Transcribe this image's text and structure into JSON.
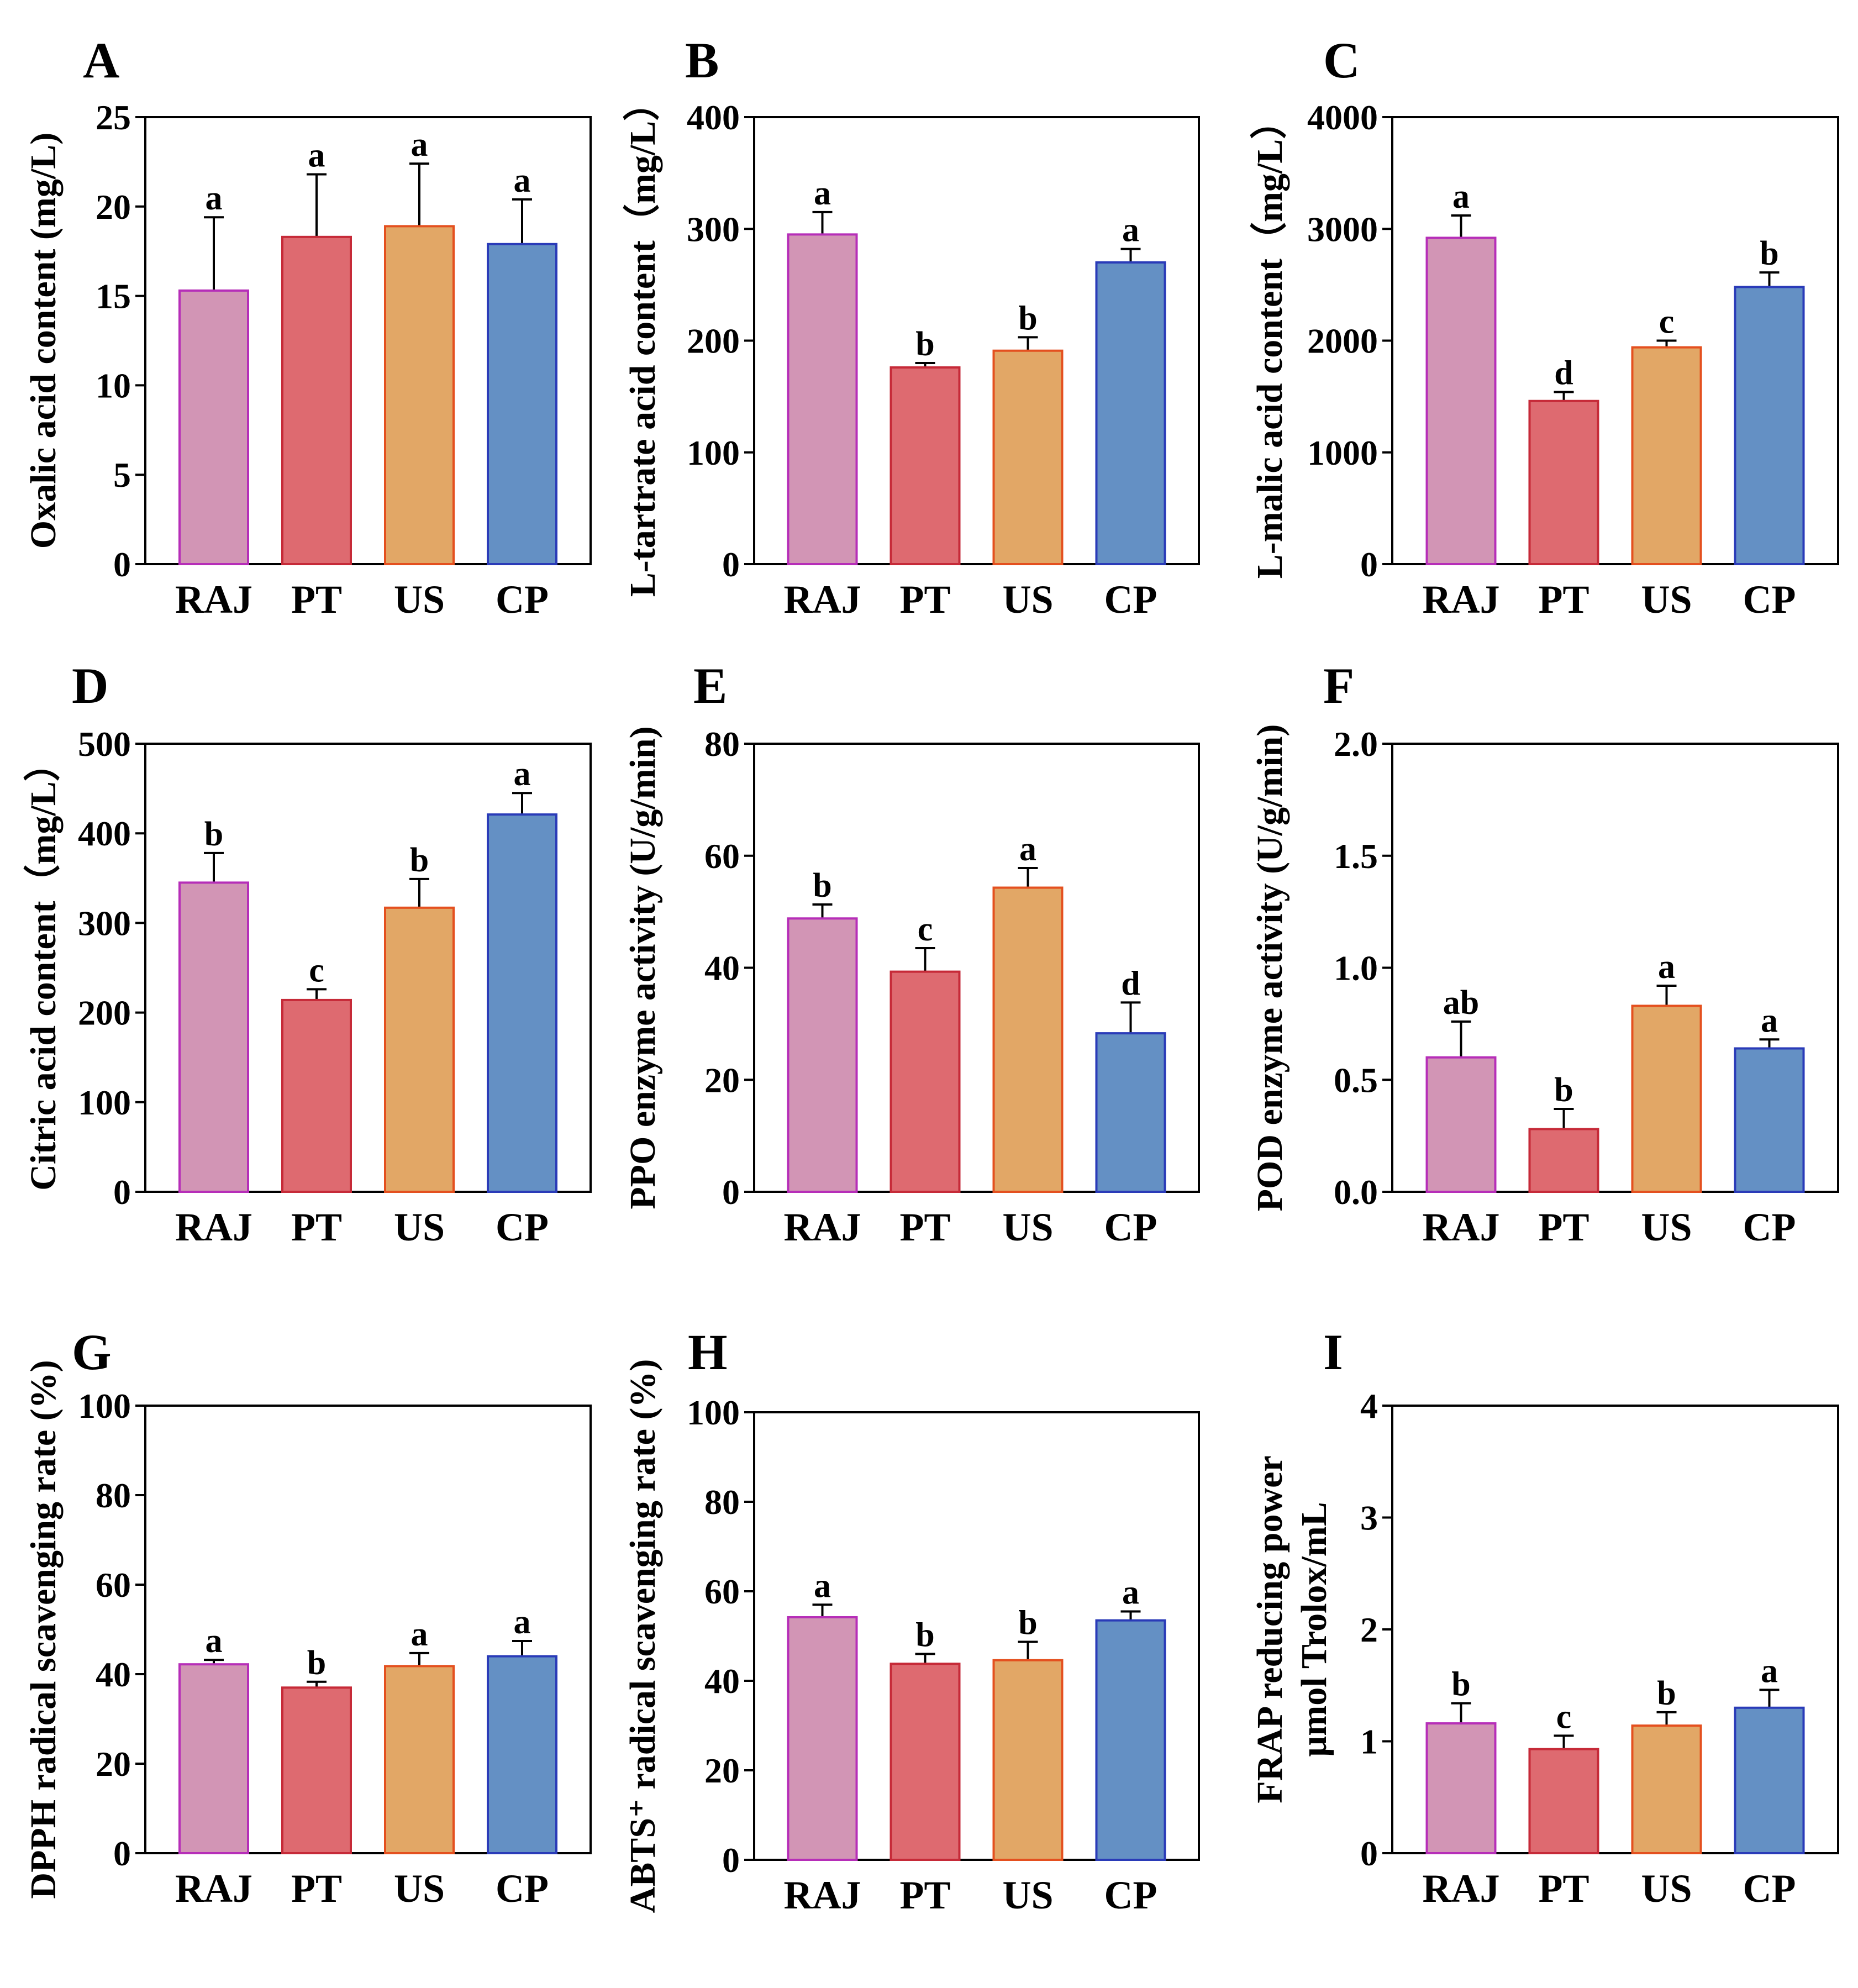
{
  "figure": {
    "categories": [
      "RAJ",
      "PT",
      "US",
      "CP"
    ],
    "colors": {
      "fills": [
        "#D295B5",
        "#DE6A70",
        "#E2A766",
        "#6490C4"
      ],
      "strokes": [
        "#B62EB8",
        "#C62A38",
        "#E4501F",
        "#2A3BB8"
      ],
      "axis": "#000000",
      "error_bar": "#000000"
    }
  },
  "chart_data": [
    {
      "panel": "A",
      "type": "bar",
      "ylabel": "Oxalic acid content (mg/L)",
      "ylim": [
        0,
        25
      ],
      "yticks": [
        0,
        5,
        10,
        15,
        20,
        25
      ],
      "categories": [
        "RAJ",
        "PT",
        "US",
        "CP"
      ],
      "values": [
        15.3,
        18.3,
        18.9,
        17.9
      ],
      "errors": [
        4.1,
        3.5,
        3.5,
        2.5
      ],
      "significance": [
        "a",
        "a",
        "a",
        "a"
      ]
    },
    {
      "panel": "B",
      "type": "bar",
      "ylabel": "L-tartrate acid content（mg/L）",
      "ylim": [
        0,
        400
      ],
      "yticks": [
        0,
        100,
        200,
        300,
        400
      ],
      "categories": [
        "RAJ",
        "PT",
        "US",
        "CP"
      ],
      "values": [
        295,
        176,
        191,
        270
      ],
      "errors": [
        20,
        4,
        12,
        12
      ],
      "significance": [
        "a",
        "b",
        "b",
        "a"
      ]
    },
    {
      "panel": "C",
      "type": "bar",
      "ylabel": "L-malic acid content（mg/L）",
      "ylim": [
        0,
        4000
      ],
      "yticks": [
        0,
        1000,
        2000,
        3000,
        4000
      ],
      "categories": [
        "RAJ",
        "PT",
        "US",
        "CP"
      ],
      "values": [
        2920,
        1460,
        1940,
        2480
      ],
      "errors": [
        200,
        80,
        60,
        130
      ],
      "significance": [
        "a",
        "d",
        "c",
        "b"
      ]
    },
    {
      "panel": "D",
      "type": "bar",
      "ylabel": "Citric acid content（mg/L）",
      "ylim": [
        0,
        500
      ],
      "yticks": [
        0,
        100,
        200,
        300,
        400,
        500
      ],
      "categories": [
        "RAJ",
        "PT",
        "US",
        "CP"
      ],
      "values": [
        345,
        214,
        317,
        421
      ],
      "errors": [
        33,
        12,
        32,
        24
      ],
      "significance": [
        "b",
        "c",
        "b",
        "a"
      ]
    },
    {
      "panel": "E",
      "type": "bar",
      "ylabel": "PPO enzyme activity (U/g/min)",
      "ylim": [
        0,
        80
      ],
      "yticks": [
        0,
        20,
        40,
        60,
        80
      ],
      "categories": [
        "RAJ",
        "PT",
        "US",
        "CP"
      ],
      "values": [
        48.8,
        39.3,
        54.3,
        28.3
      ],
      "errors": [
        2.5,
        4.2,
        3.5,
        5.5
      ],
      "significance": [
        "b",
        "c",
        "a",
        "d"
      ]
    },
    {
      "panel": "F",
      "type": "bar",
      "ylabel": "POD enzyme activity (U/g/min)",
      "ylim": [
        0,
        2.0
      ],
      "yticks": [
        "0.0",
        "0.5",
        "1.0",
        "1.5",
        "2.0"
      ],
      "categories": [
        "RAJ",
        "PT",
        "US",
        "CP"
      ],
      "values": [
        0.6,
        0.28,
        0.83,
        0.64
      ],
      "errors": [
        0.16,
        0.09,
        0.09,
        0.04
      ],
      "significance": [
        "ab",
        "b",
        "a",
        "a"
      ]
    },
    {
      "panel": "G",
      "type": "bar",
      "ylabel": "DPPH radical scavenging rate (%)",
      "ylim": [
        0,
        100
      ],
      "yticks": [
        0,
        20,
        40,
        60,
        80,
        100
      ],
      "categories": [
        "RAJ",
        "PT",
        "US",
        "CP"
      ],
      "values": [
        42.2,
        37.0,
        41.8,
        44.0
      ],
      "errors": [
        1.0,
        1.3,
        2.9,
        3.4
      ],
      "significance": [
        "a",
        "b",
        "a",
        "a"
      ]
    },
    {
      "panel": "H",
      "type": "bar",
      "ylabel": "ABTS⁺ radical scavenging rate (%)",
      "ylim": [
        0,
        100
      ],
      "yticks": [
        0,
        20,
        40,
        60,
        80,
        100
      ],
      "categories": [
        "RAJ",
        "PT",
        "US",
        "CP"
      ],
      "values": [
        54.2,
        43.8,
        44.6,
        53.5
      ],
      "errors": [
        2.8,
        2.2,
        4.1,
        2.0
      ],
      "significance": [
        "a",
        "b",
        "b",
        "a"
      ]
    },
    {
      "panel": "I",
      "type": "bar",
      "ylabel": "FRAP reducing power",
      "ylabel2": "µmol Trolox/mL",
      "ylim": [
        0,
        4
      ],
      "yticks": [
        0,
        1,
        2,
        3,
        4
      ],
      "categories": [
        "RAJ",
        "PT",
        "US",
        "CP"
      ],
      "values": [
        1.16,
        0.93,
        1.14,
        1.3
      ],
      "errors": [
        0.18,
        0.12,
        0.12,
        0.16
      ],
      "significance": [
        "b",
        "c",
        "b",
        "a"
      ]
    }
  ]
}
